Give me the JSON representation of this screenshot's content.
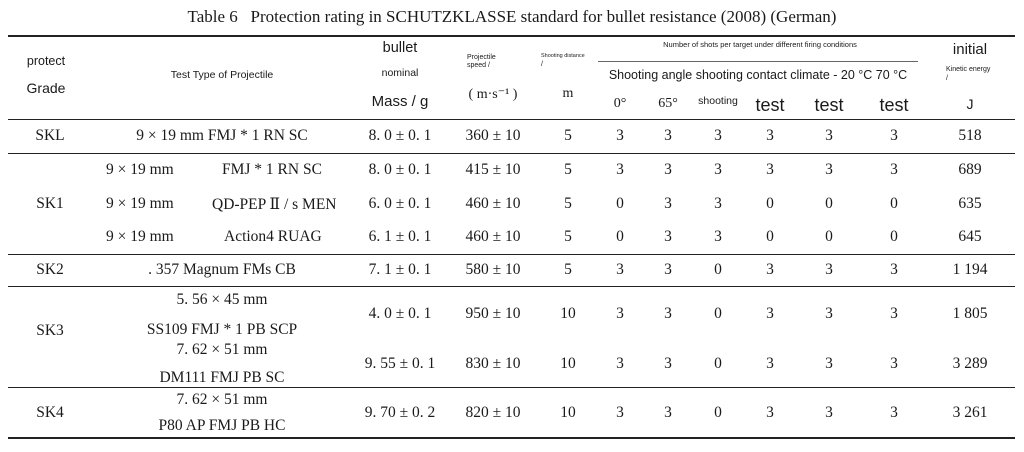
{
  "caption": {
    "number": "Table 6",
    "title": "Protection rating in SCHUTZKLASSE standard for bullet resistance (2008) (German)"
  },
  "header": {
    "grade_line1": "protect",
    "grade_line2": "Grade",
    "projectile": "Test Type of Projectile",
    "mass_line1": "bullet",
    "mass_line2": "nominal",
    "mass_line3": "Mass / g",
    "speed_line1": "Projectile",
    "speed_line2": "speed /",
    "speed_unit": "( m·s⁻¹ )",
    "distance_line1": "Shooting distance",
    "distance_line2": "/",
    "distance_unit": "m",
    "shots_group": "Number of shots per target under different firing conditions",
    "shots_subgroup": "Shooting angle shooting contact climate - 20 °C 70 °C",
    "col_angle0": "0°",
    "col_angle65": "65°",
    "col_shooting": "shooting",
    "col_test1": "test",
    "col_test2": "test",
    "col_test3": "test",
    "energy_line1": "initial",
    "energy_line2": "Kinetic energy",
    "energy_line3": "/",
    "energy_unit": "J"
  },
  "rows": {
    "skl": {
      "grade": "SKL",
      "projectile": "9 × 19 mm FMJ * 1 RN SC",
      "mass": "8. 0 ± 0. 1",
      "speed": "360 ± 10",
      "distance": "5",
      "a0": "3",
      "a65": "3",
      "sh": "3",
      "t1": "3",
      "t2": "3",
      "t3": "3",
      "energy": "518"
    },
    "sk1_grade": "SK1",
    "sk1a": {
      "caliber": "9 × 19 mm",
      "type": "FMJ * 1 RN SC",
      "mass": "8. 0 ± 0. 1",
      "speed": "415 ± 10",
      "distance": "5",
      "a0": "3",
      "a65": "3",
      "sh": "3",
      "t1": "3",
      "t2": "3",
      "t3": "3",
      "energy": "689"
    },
    "sk1b": {
      "caliber": "9 × 19 mm",
      "type": "QD-PEP Ⅱ / s MEN",
      "mass": "6. 0 ± 0. 1",
      "speed": "460 ± 10",
      "distance": "5",
      "a0": "0",
      "a65": "3",
      "sh": "3",
      "t1": "0",
      "t2": "0",
      "t3": "0",
      "energy": "635"
    },
    "sk1c": {
      "caliber": "9 × 19 mm",
      "type": "Action4 RUAG",
      "mass": "6. 1 ± 0. 1",
      "speed": "460 ± 10",
      "distance": "5",
      "a0": "0",
      "a65": "3",
      "sh": "3",
      "t1": "0",
      "t2": "0",
      "t3": "0",
      "energy": "645"
    },
    "sk2": {
      "grade": "SK2",
      "projectile": ". 357 Magnum FMs CB",
      "mass": "7. 1 ± 0. 1",
      "speed": "580 ± 10",
      "distance": "5",
      "a0": "3",
      "a65": "3",
      "sh": "0",
      "t1": "3",
      "t2": "3",
      "t3": "3",
      "energy": "1 194"
    },
    "sk3_grade": "SK3",
    "sk3a": {
      "line1": "5. 56 × 45 mm",
      "line2": "SS109 FMJ * 1 PB SCP",
      "mass": "4. 0 ± 0. 1",
      "speed": "950 ± 10",
      "distance": "10",
      "a0": "3",
      "a65": "3",
      "sh": "0",
      "t1": "3",
      "t2": "3",
      "t3": "3",
      "energy": "1 805"
    },
    "sk3b": {
      "line1": "7. 62 × 51 mm",
      "line2": "DM111 FMJ PB SC",
      "mass": "9. 55 ± 0. 1",
      "speed": "830 ± 10",
      "distance": "10",
      "a0": "3",
      "a65": "3",
      "sh": "0",
      "t1": "3",
      "t2": "3",
      "t3": "3",
      "energy": "3 289"
    },
    "sk4": {
      "grade": "SK4",
      "line1": "7. 62 × 51 mm",
      "line2": "P80 AP FMJ PB HC",
      "mass": "9. 70 ± 0. 2",
      "speed": "820 ± 10",
      "distance": "10",
      "a0": "3",
      "a65": "3",
      "sh": "0",
      "t1": "3",
      "t2": "3",
      "t3": "3",
      "energy": "3 261"
    }
  }
}
